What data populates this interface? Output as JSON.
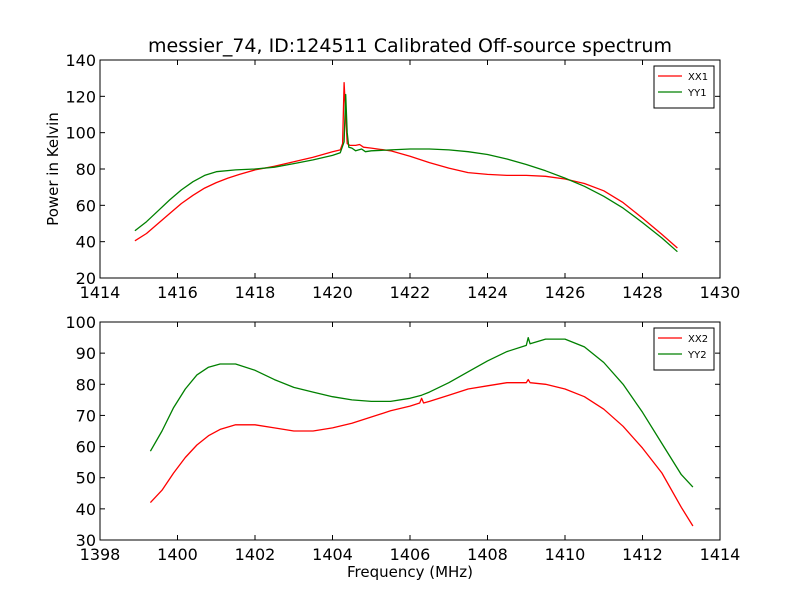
{
  "chart_data": [
    {
      "type": "line",
      "title": "messier_74, ID:124511 Calibrated Off-source spectrum",
      "xlabel": "",
      "ylabel": "Power in Kelvin",
      "xlim": [
        1414,
        1430
      ],
      "ylim": [
        20,
        140
      ],
      "xticks": [
        "1414",
        "1416",
        "1418",
        "1420",
        "1422",
        "1424",
        "1426",
        "1428",
        "1430"
      ],
      "yticks": [
        "20",
        "40",
        "60",
        "80",
        "100",
        "120",
        "140"
      ],
      "grid": false,
      "legend_position": "top-right",
      "series": [
        {
          "name": "XX1",
          "color": "#ff0000",
          "points": [
            [
              1414.9,
              40.5
            ],
            [
              1415.2,
              44.5
            ],
            [
              1415.5,
              50
            ],
            [
              1415.8,
              55.5
            ],
            [
              1416.1,
              61
            ],
            [
              1416.4,
              65.5
            ],
            [
              1416.7,
              69.5
            ],
            [
              1417.0,
              72.5
            ],
            [
              1417.3,
              75
            ],
            [
              1417.6,
              77
            ],
            [
              1418.0,
              79.5
            ],
            [
              1418.5,
              81.5
            ],
            [
              1419.0,
              84
            ],
            [
              1419.5,
              86.5
            ],
            [
              1420.0,
              89.5
            ],
            [
              1420.2,
              90.5
            ],
            [
              1420.26,
              94
            ],
            [
              1420.3,
              127.5
            ],
            [
              1420.34,
              110
            ],
            [
              1420.38,
              94
            ],
            [
              1420.45,
              93
            ],
            [
              1420.6,
              93
            ],
            [
              1420.7,
              93.5
            ],
            [
              1420.8,
              92
            ],
            [
              1421.0,
              91.5
            ],
            [
              1421.5,
              90
            ],
            [
              1422.0,
              87
            ],
            [
              1422.5,
              83.5
            ],
            [
              1423.0,
              80.5
            ],
            [
              1423.5,
              78
            ],
            [
              1424.0,
              77
            ],
            [
              1424.5,
              76.5
            ],
            [
              1425.0,
              76.5
            ],
            [
              1425.5,
              76
            ],
            [
              1426.0,
              74.5
            ],
            [
              1426.5,
              72
            ],
            [
              1427.0,
              68
            ],
            [
              1427.5,
              61.5
            ],
            [
              1428.0,
              53
            ],
            [
              1428.5,
              44
            ],
            [
              1428.9,
              36.5
            ]
          ]
        },
        {
          "name": "YY1",
          "color": "#008000",
          "points": [
            [
              1414.9,
              46
            ],
            [
              1415.2,
              51
            ],
            [
              1415.5,
              57
            ],
            [
              1415.8,
              63
            ],
            [
              1416.1,
              68.5
            ],
            [
              1416.4,
              73
            ],
            [
              1416.7,
              76.5
            ],
            [
              1417.0,
              78.5
            ],
            [
              1417.5,
              79.5
            ],
            [
              1418.0,
              80
            ],
            [
              1418.5,
              81
            ],
            [
              1419.0,
              83
            ],
            [
              1419.5,
              85
            ],
            [
              1420.0,
              87.5
            ],
            [
              1420.2,
              89
            ],
            [
              1420.3,
              95
            ],
            [
              1420.34,
              121
            ],
            [
              1420.38,
              100
            ],
            [
              1420.42,
              92
            ],
            [
              1420.5,
              91.5
            ],
            [
              1420.6,
              90
            ],
            [
              1420.75,
              91
            ],
            [
              1420.85,
              89.5
            ],
            [
              1421.0,
              90
            ],
            [
              1421.5,
              90.5
            ],
            [
              1422.0,
              91
            ],
            [
              1422.5,
              91
            ],
            [
              1423.0,
              90.5
            ],
            [
              1423.5,
              89.5
            ],
            [
              1424.0,
              88
            ],
            [
              1424.5,
              85.5
            ],
            [
              1425.0,
              82.5
            ],
            [
              1425.5,
              79
            ],
            [
              1426.0,
              75
            ],
            [
              1426.5,
              70.5
            ],
            [
              1427.0,
              65
            ],
            [
              1427.5,
              58.5
            ],
            [
              1428.0,
              50.5
            ],
            [
              1428.5,
              42
            ],
            [
              1428.9,
              34.5
            ]
          ]
        }
      ]
    },
    {
      "type": "line",
      "title": "",
      "xlabel": "Frequency (MHz)",
      "ylabel": "",
      "xlim": [
        1398,
        1414
      ],
      "ylim": [
        30,
        100
      ],
      "xticks": [
        "1398",
        "1400",
        "1402",
        "1404",
        "1406",
        "1408",
        "1410",
        "1412",
        "1414"
      ],
      "yticks": [
        "30",
        "40",
        "50",
        "60",
        "70",
        "80",
        "90",
        "100"
      ],
      "grid": false,
      "legend_position": "top-right",
      "series": [
        {
          "name": "XX2",
          "color": "#ff0000",
          "points": [
            [
              1399.3,
              42
            ],
            [
              1399.6,
              46
            ],
            [
              1399.9,
              51.5
            ],
            [
              1400.2,
              56.5
            ],
            [
              1400.5,
              60.5
            ],
            [
              1400.8,
              63.5
            ],
            [
              1401.1,
              65.5
            ],
            [
              1401.5,
              67
            ],
            [
              1402.0,
              67
            ],
            [
              1402.5,
              66
            ],
            [
              1403.0,
              65
            ],
            [
              1403.5,
              65
            ],
            [
              1404.0,
              66
            ],
            [
              1404.5,
              67.5
            ],
            [
              1405.0,
              69.5
            ],
            [
              1405.5,
              71.5
            ],
            [
              1406.0,
              73
            ],
            [
              1406.25,
              74
            ],
            [
              1406.3,
              75.5
            ],
            [
              1406.35,
              74
            ],
            [
              1406.5,
              74.5
            ],
            [
              1407.0,
              76.5
            ],
            [
              1407.5,
              78.5
            ],
            [
              1408.0,
              79.5
            ],
            [
              1408.5,
              80.5
            ],
            [
              1409.0,
              80.5
            ],
            [
              1409.05,
              81.5
            ],
            [
              1409.1,
              80.5
            ],
            [
              1409.5,
              80
            ],
            [
              1410.0,
              78.5
            ],
            [
              1410.5,
              76
            ],
            [
              1411.0,
              72
            ],
            [
              1411.5,
              66.5
            ],
            [
              1412.0,
              59.5
            ],
            [
              1412.5,
              51.5
            ],
            [
              1413.0,
              40.5
            ],
            [
              1413.3,
              34.5
            ]
          ]
        },
        {
          "name": "YY2",
          "color": "#008000",
          "points": [
            [
              1399.3,
              58.5
            ],
            [
              1399.6,
              65
            ],
            [
              1399.9,
              72.5
            ],
            [
              1400.2,
              78.5
            ],
            [
              1400.5,
              83
            ],
            [
              1400.8,
              85.5
            ],
            [
              1401.1,
              86.5
            ],
            [
              1401.5,
              86.5
            ],
            [
              1402.0,
              84.5
            ],
            [
              1402.5,
              81.5
            ],
            [
              1403.0,
              79
            ],
            [
              1403.5,
              77.5
            ],
            [
              1404.0,
              76
            ],
            [
              1404.5,
              75
            ],
            [
              1405.0,
              74.5
            ],
            [
              1405.5,
              74.5
            ],
            [
              1406.0,
              75.5
            ],
            [
              1406.3,
              76.5
            ],
            [
              1406.5,
              77.5
            ],
            [
              1407.0,
              80.5
            ],
            [
              1407.5,
              84
            ],
            [
              1408.0,
              87.5
            ],
            [
              1408.5,
              90.5
            ],
            [
              1409.0,
              92.5
            ],
            [
              1409.05,
              95
            ],
            [
              1409.1,
              93
            ],
            [
              1409.5,
              94.5
            ],
            [
              1410.0,
              94.5
            ],
            [
              1410.5,
              92
            ],
            [
              1411.0,
              87
            ],
            [
              1411.5,
              80
            ],
            [
              1412.0,
              71
            ],
            [
              1412.5,
              61
            ],
            [
              1413.0,
              51
            ],
            [
              1413.3,
              47
            ]
          ]
        }
      ]
    }
  ]
}
